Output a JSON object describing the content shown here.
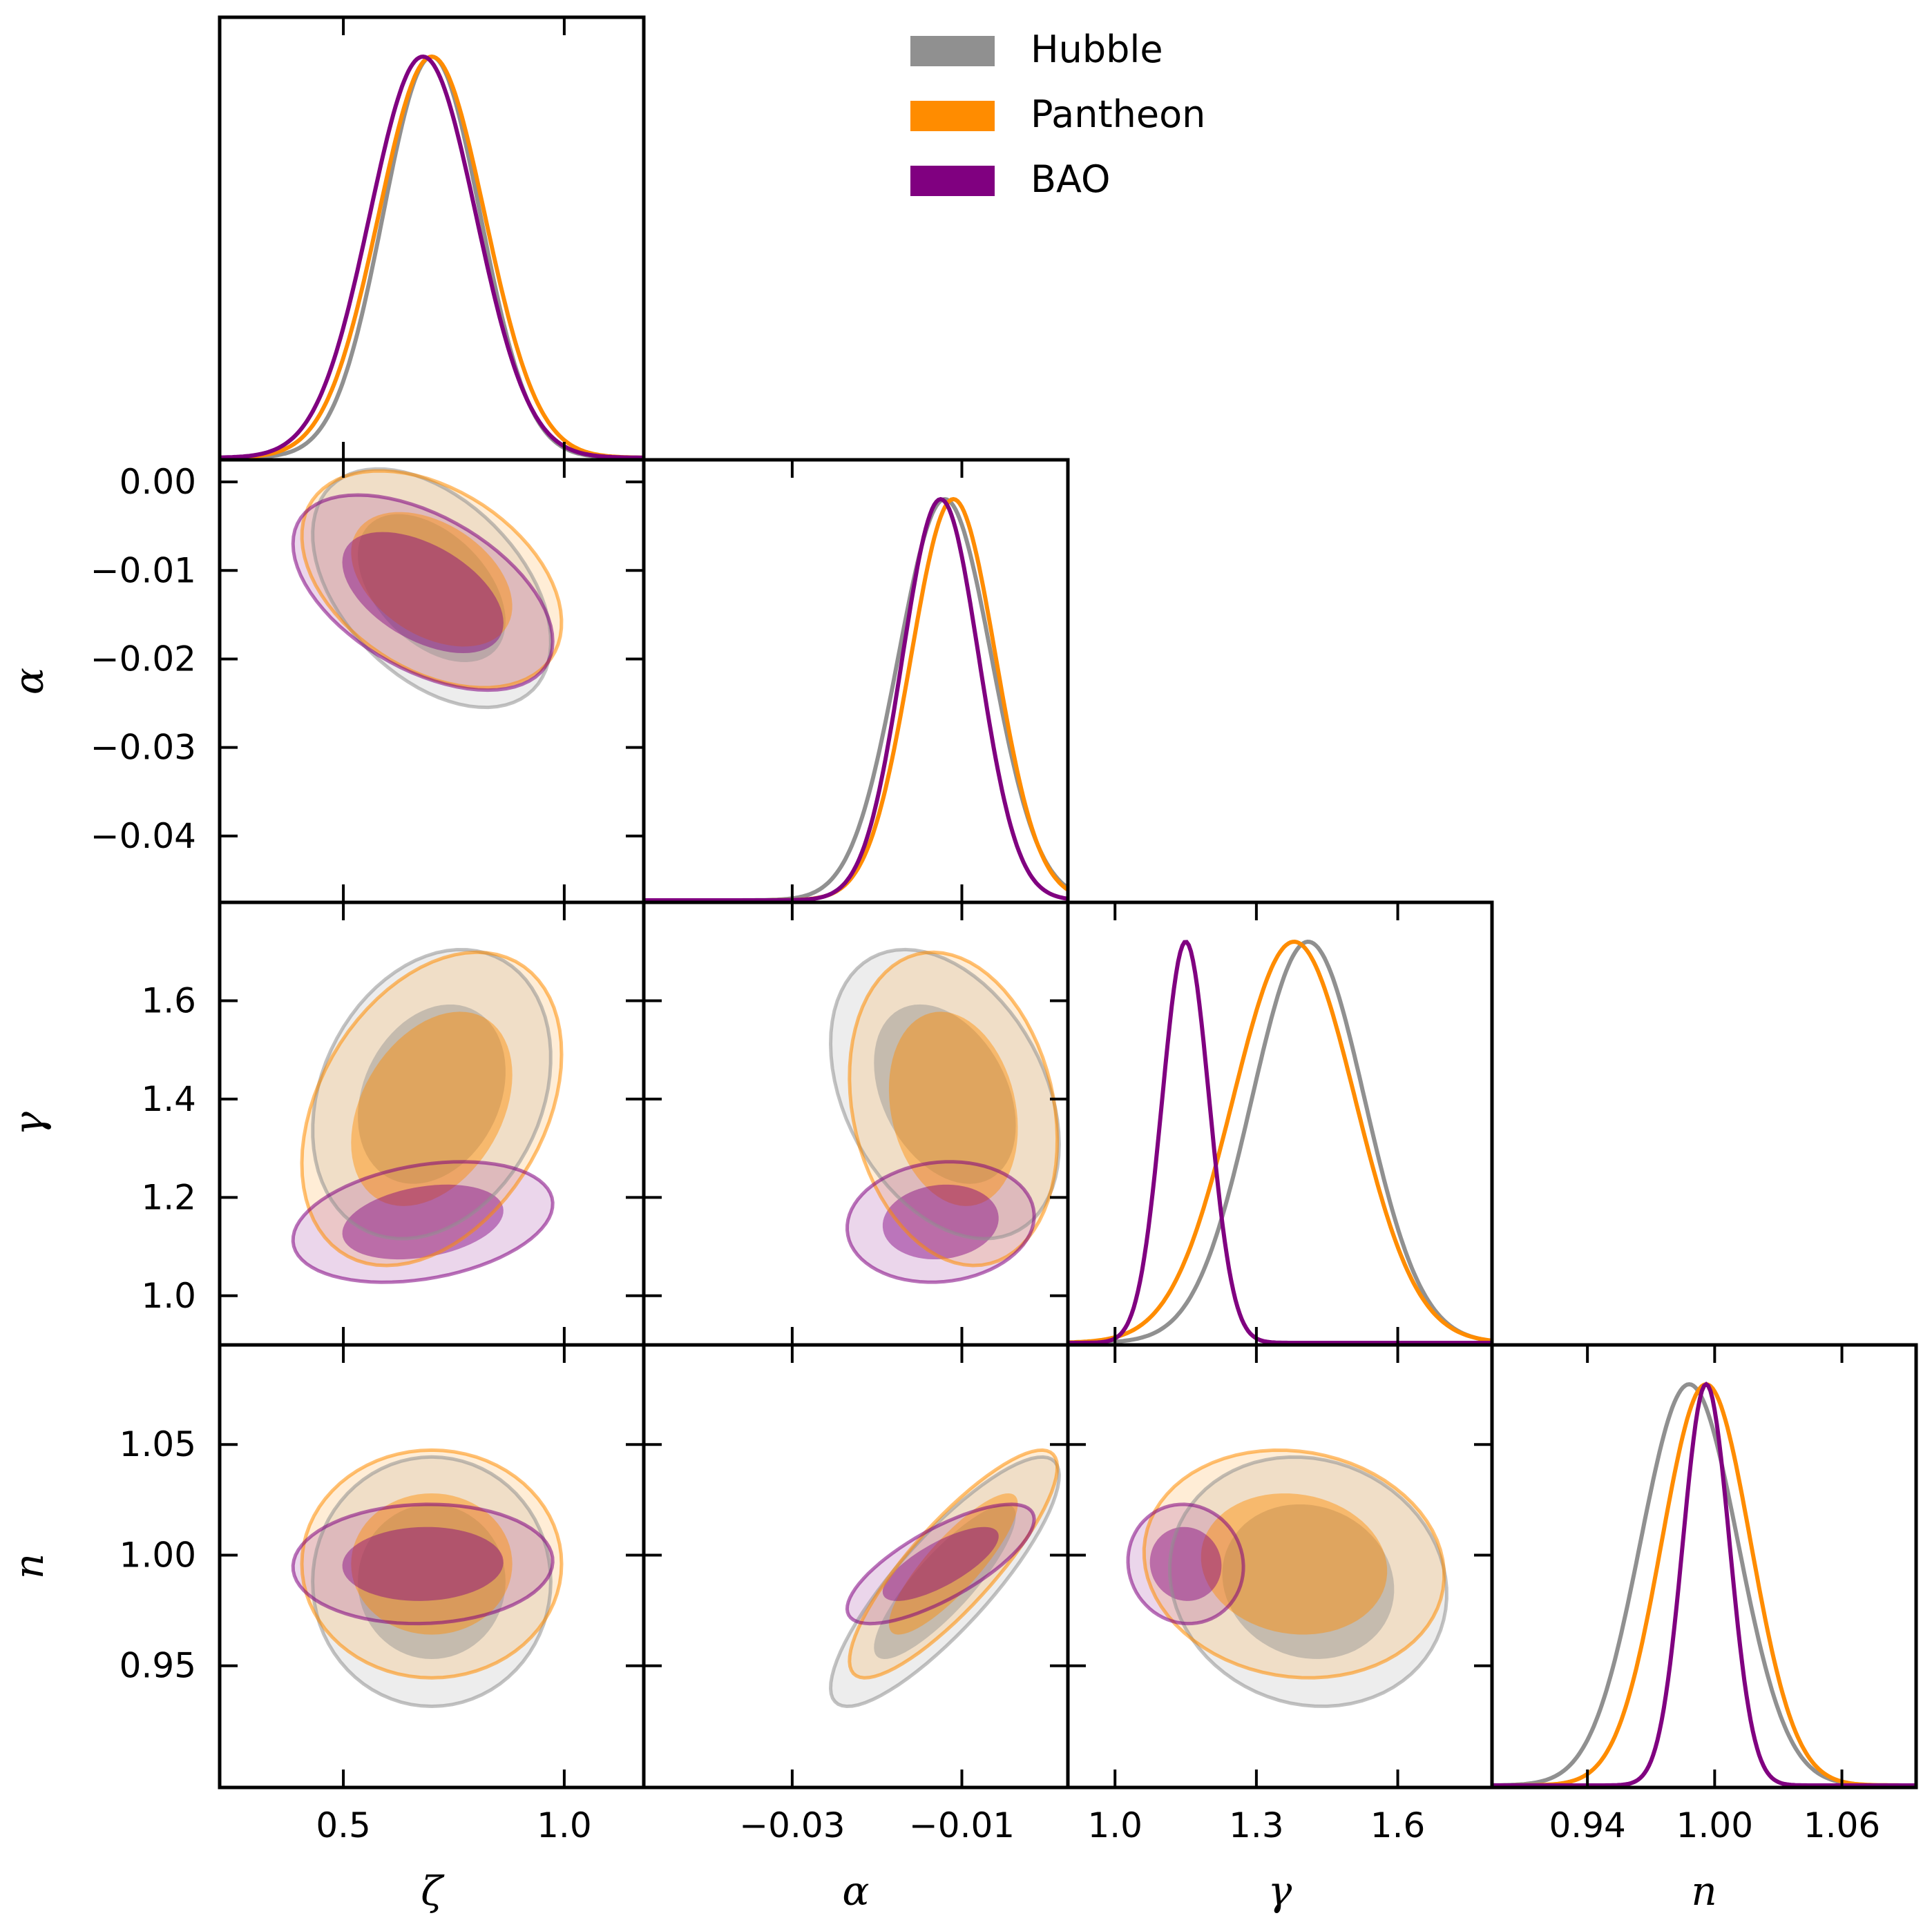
{
  "chart_data": {
    "type": "corner",
    "parameters": [
      {
        "key": "zeta",
        "label": "ζ",
        "range": [
          0.22,
          1.18
        ],
        "ticks": [
          0.5,
          1.0
        ],
        "tick_labels": [
          "0.5",
          "1.0"
        ]
      },
      {
        "key": "alpha",
        "label": "α",
        "range": [
          -0.0475,
          0.0025
        ],
        "ticks": [
          -0.03,
          -0.01
        ],
        "tick_labels": [
          "−0.03",
          "−0.01"
        ],
        "y_ticks": [
          0.0,
          -0.01,
          -0.02,
          -0.03,
          -0.04
        ],
        "y_tick_labels": [
          "0.00",
          "−0.01",
          "−0.02",
          "−0.03",
          "−0.04"
        ]
      },
      {
        "key": "gamma",
        "label": "γ",
        "range": [
          0.9,
          1.8
        ],
        "ticks": [
          1.0,
          1.3,
          1.6
        ],
        "tick_labels": [
          "1.0",
          "1.3",
          "1.6"
        ],
        "y_ticks": [
          1.0,
          1.2,
          1.4,
          1.6
        ],
        "y_tick_labels": [
          "1.0",
          "1.2",
          "1.4",
          "1.6"
        ]
      },
      {
        "key": "n",
        "label": "n",
        "range": [
          0.895,
          1.095
        ],
        "ticks": [
          0.94,
          1.0,
          1.06
        ],
        "tick_labels": [
          "0.94",
          "1.00",
          "1.06"
        ],
        "y_ticks": [
          0.95,
          1.0,
          1.05
        ],
        "y_tick_labels": [
          "0.95",
          "1.00",
          "1.05"
        ]
      }
    ],
    "datasets": [
      {
        "name": "Hubble",
        "color": "#909090",
        "mean": {
          "zeta": 0.7,
          "alpha": -0.012,
          "gamma": 1.41,
          "n": 0.988
        },
        "sigma": {
          "zeta": 0.11,
          "alpha": 0.0055,
          "gamma": 0.12,
          "n": 0.023
        },
        "corr": {
          "zeta_alpha": -0.45,
          "zeta_gamma": 0.25,
          "zeta_n": 0.0,
          "alpha_gamma": -0.35,
          "alpha_n": 0.85,
          "gamma_n": -0.1
        }
      },
      {
        "name": "Pantheon",
        "color": "#ff8c00",
        "mean": {
          "zeta": 0.7,
          "alpha": -0.011,
          "gamma": 1.38,
          "n": 0.996
        },
        "sigma": {
          "zeta": 0.12,
          "alpha": 0.005,
          "gamma": 0.13,
          "n": 0.021
        },
        "corr": {
          "zeta_alpha": -0.4,
          "zeta_gamma": 0.35,
          "zeta_n": 0.0,
          "alpha_gamma": -0.2,
          "alpha_n": 0.85,
          "gamma_n": -0.1
        }
      },
      {
        "name": "BAO",
        "color": "#800080",
        "mean": {
          "zeta": 0.68,
          "alpha": -0.0125,
          "gamma": 1.15,
          "n": 0.996
        },
        "sigma": {
          "zeta": 0.12,
          "alpha": 0.0045,
          "gamma": 0.05,
          "n": 0.011
        },
        "corr": {
          "zeta_alpha": -0.5,
          "zeta_gamma": 0.3,
          "zeta_n": 0.05,
          "alpha_gamma": 0.1,
          "alpha_n": 0.75,
          "gamma_n": -0.05
        }
      }
    ],
    "legend": {
      "position": "top-right",
      "entries": [
        "Hubble",
        "Pantheon",
        "BAO"
      ]
    },
    "contour_levels": [
      "68%",
      "95%"
    ]
  }
}
